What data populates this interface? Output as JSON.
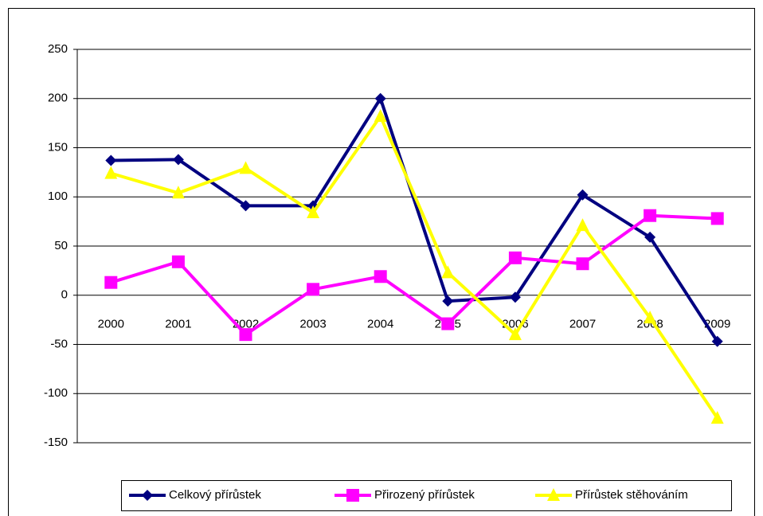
{
  "chart_data": {
    "type": "line",
    "categories": [
      "2000",
      "2001",
      "2002",
      "2003",
      "2004",
      "2005",
      "2006",
      "2007",
      "2008",
      "2009"
    ],
    "series": [
      {
        "name": "Celkový přírůstek",
        "color": "#000080",
        "marker": "diamond",
        "values": [
          137,
          138,
          91,
          91,
          200,
          -6,
          -2,
          102,
          59,
          -47
        ]
      },
      {
        "name": "Přirozený přírůstek",
        "color": "#ff00ff",
        "marker": "square",
        "values": [
          13,
          34,
          -40,
          6,
          19,
          -29,
          38,
          32,
          81,
          78
        ]
      },
      {
        "name": "Přírůstek stěhováním",
        "color": "#ffff00",
        "marker": "triangle",
        "values": [
          124,
          104,
          129,
          84,
          182,
          23,
          -40,
          71,
          -23,
          -125
        ]
      }
    ],
    "ylim": [
      -150,
      250
    ],
    "yticks": [
      -150,
      -100,
      -50,
      0,
      50,
      100,
      150,
      200,
      250
    ],
    "grid": true,
    "legend": "bottom"
  }
}
